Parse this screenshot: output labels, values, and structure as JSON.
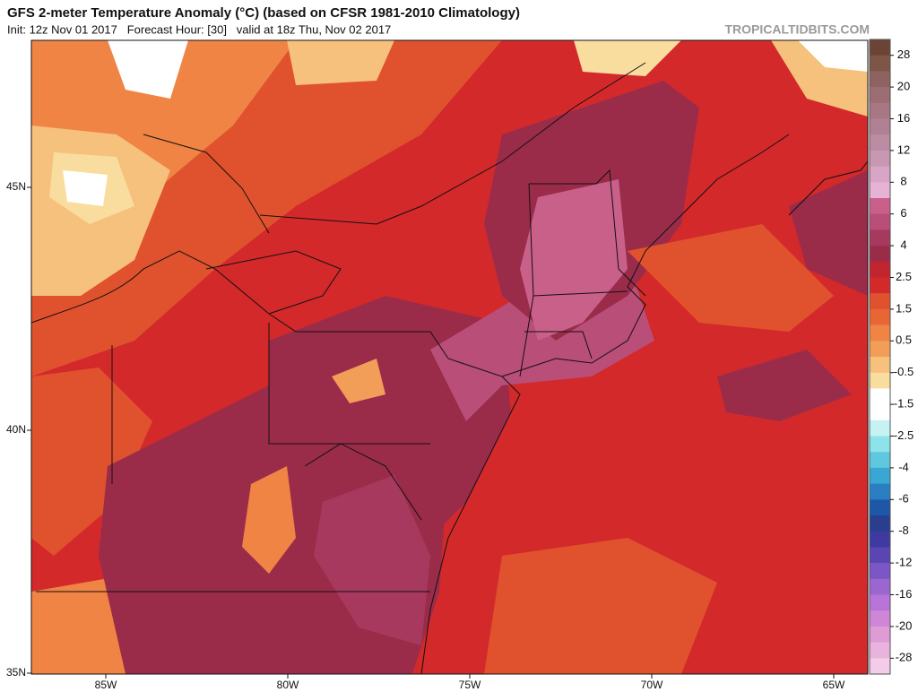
{
  "header": {
    "title": "GFS 2-meter Temperature Anomaly (°C) (based on CFSR 1981-2010 Climatology)",
    "subtitle": "Init: 12z Nov 01 2017   Forecast Hour: [30]   valid at 18z Thu, Nov 02 2017",
    "watermark": "TROPICALTIDBITS.COM"
  },
  "map": {
    "latitude_labels": [
      "45N",
      "40N",
      "35N"
    ],
    "longitude_labels": [
      "85W",
      "80W",
      "75W",
      "70W",
      "65W"
    ]
  },
  "colorbar": {
    "labels": [
      "28",
      "20",
      "16",
      "12",
      "8",
      "6",
      "4",
      "2.5",
      "1.5",
      "0.5",
      "-0.5",
      "-1.5",
      "-2.5",
      "-4",
      "-6",
      "-8",
      "-12",
      "-16",
      "-20",
      "-28"
    ],
    "colors": [
      "#6b4436",
      "#7e5547",
      "#8f6262",
      "#9c6d73",
      "#a77784",
      "#b08192",
      "#bc8ca2",
      "#c898b2",
      "#d8a5c6",
      "#e6b3d6",
      "#c9608a",
      "#b94e78",
      "#a8395e",
      "#9a2c4a",
      "#c22530",
      "#d3292b",
      "#e0522e",
      "#e86636",
      "#ef8444",
      "#f29e58",
      "#f6c17c",
      "#f9dd9e",
      "#ffffff",
      "#ffffff",
      "#c6f2f4",
      "#8de3ea",
      "#5fc8df",
      "#3aa6d3",
      "#2a7fc2",
      "#1f57a8",
      "#2a3e8f",
      "#3e3a9f",
      "#5a45b5",
      "#7a56c6",
      "#9a66d0",
      "#b874d8",
      "#cf86d8",
      "#de9bd6",
      "#e9b3de",
      "#f2cce8"
    ]
  }
}
